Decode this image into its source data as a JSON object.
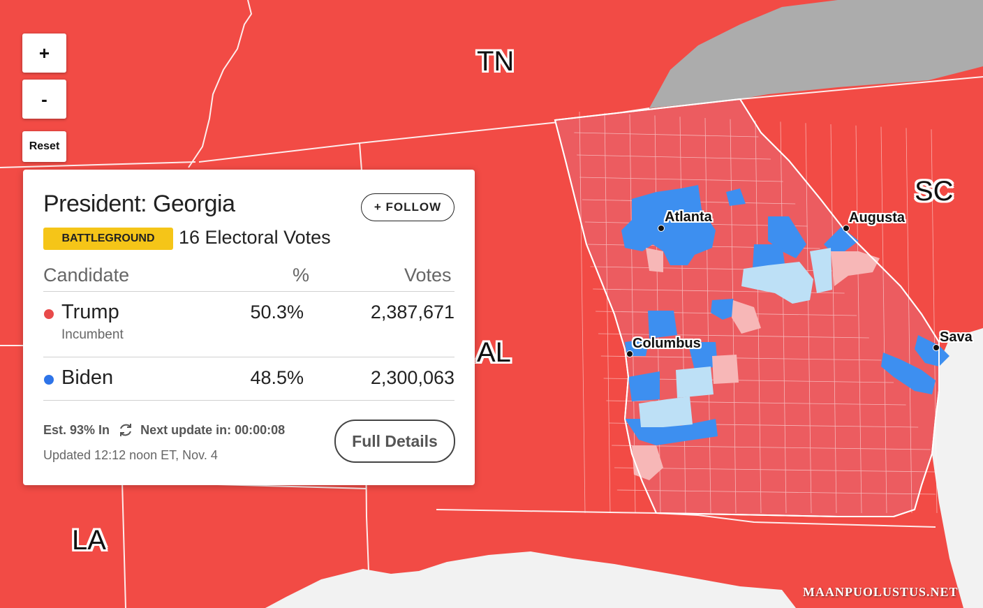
{
  "colors": {
    "state_red": "#f24b45",
    "county_red": "#ec5c60",
    "county_blue": "#3d8ff0",
    "county_light_blue": "#bde0f6",
    "county_pink": "#f7b7b7",
    "other_state_gray": "#acacac",
    "water": "#f2f2f2",
    "badge_yellow": "#f5c518",
    "trump_dot": "#e84a4a",
    "biden_dot": "#2e74e8"
  },
  "controls": {
    "zoom_in_label": "+",
    "zoom_out_label": "-",
    "reset_label": "Reset"
  },
  "map": {
    "state_labels": {
      "tn": "TN",
      "sc": "SC",
      "al": "AL",
      "la": "LA"
    },
    "cities": {
      "atlanta": "Atlanta",
      "augusta": "Augusta",
      "columbus": "Columbus",
      "savannah": "Sava"
    }
  },
  "card": {
    "title": "President: Georgia",
    "follow_label": "+ FOLLOW",
    "badge": "BATTLEGROUND",
    "electoral_votes": "16 Electoral Votes",
    "columns": {
      "candidate": "Candidate",
      "pct": "%",
      "votes": "Votes"
    },
    "candidates": [
      {
        "name": "Trump",
        "note": "Incumbent",
        "pct": "50.3%",
        "votes": "2,387,671"
      },
      {
        "name": "Biden",
        "note": "",
        "pct": "48.5%",
        "votes": "2,300,063"
      }
    ],
    "est_in": "Est. 93% In",
    "refresh_icon": "refresh-icon",
    "next_update": "Next update in: 00:00:08",
    "updated": "Updated 12:12 noon ET, Nov. 4",
    "details_button": "Full Details"
  },
  "watermark": "MAANPUOLUSTUS.NET"
}
